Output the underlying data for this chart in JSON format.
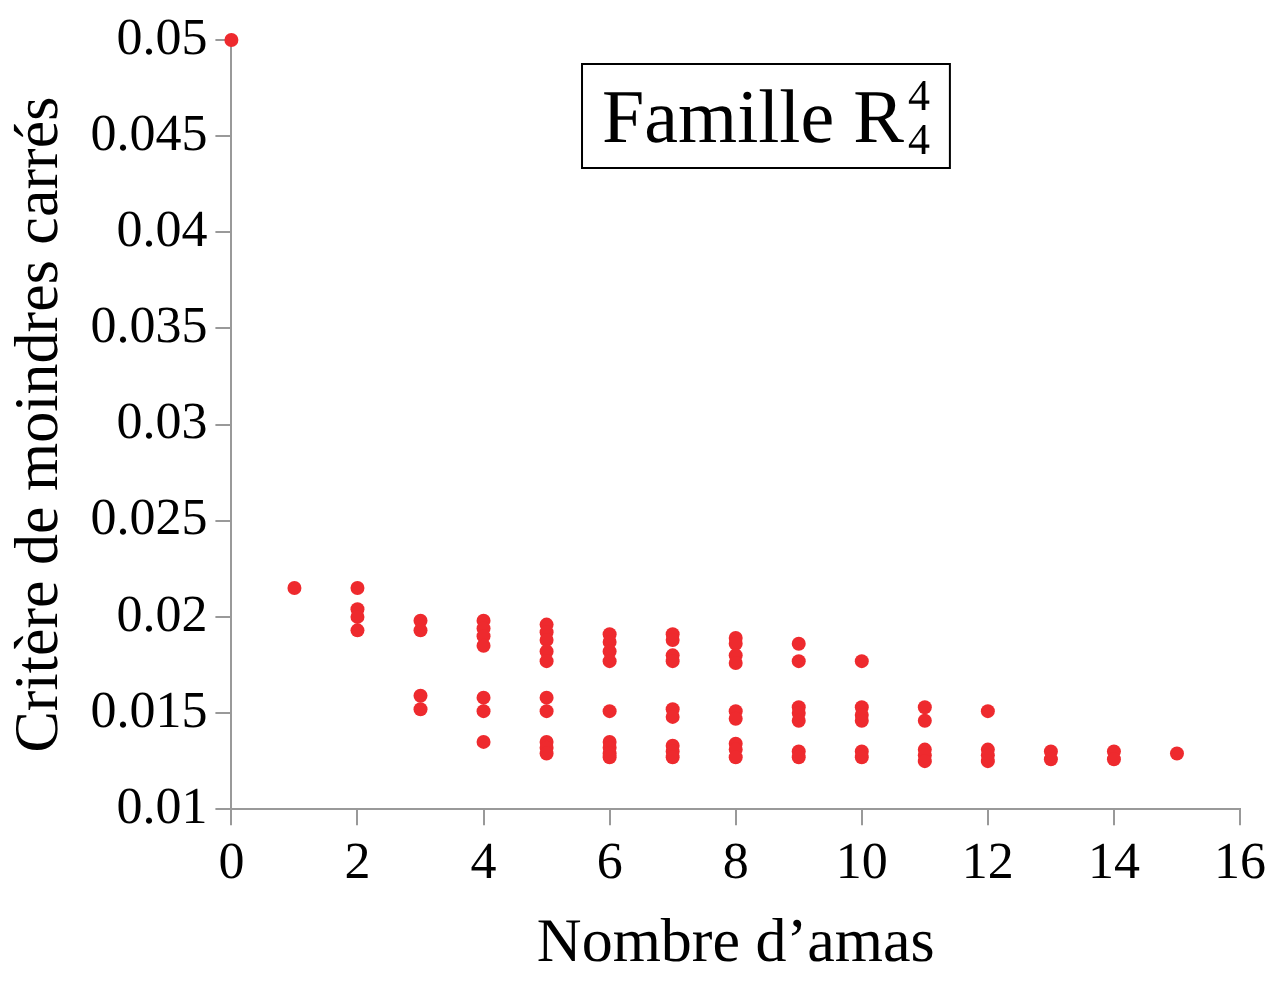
{
  "chart_data": {
    "type": "scatter",
    "title": "Famille R$^{4}$$_{4}$",
    "xlabel": "Nombre d’amas",
    "ylabel": "Critère de moindres carrés",
    "x": [
      0,
      1,
      2,
      2,
      2,
      2,
      3,
      3,
      3,
      3,
      4,
      4,
      4,
      4,
      4,
      4,
      4,
      5,
      5,
      5,
      5,
      5,
      5,
      5,
      5,
      5,
      5,
      6,
      6,
      6,
      6,
      6,
      6,
      6,
      6,
      6,
      7,
      7,
      7,
      7,
      7,
      7,
      7,
      7,
      7,
      8,
      8,
      8,
      8,
      8,
      8,
      8,
      8,
      8,
      9,
      9,
      9,
      9,
      9,
      9,
      9,
      10,
      10,
      10,
      10,
      10,
      10,
      11,
      11,
      11,
      11,
      11,
      12,
      12,
      12,
      12,
      13,
      13,
      14,
      14,
      15
    ],
    "series": [
      {
        "color": "#ee2a2e",
        "values": [
          0.05,
          0.0215,
          0.0215,
          0.0204,
          0.02,
          0.0193,
          0.0198,
          0.0193,
          0.0159,
          0.0152,
          0.0198,
          0.0194,
          0.019,
          0.0185,
          0.0158,
          0.0151,
          0.0135,
          0.0196,
          0.0192,
          0.0188,
          0.0182,
          0.0177,
          0.0158,
          0.0151,
          0.0135,
          0.0132,
          0.0129,
          0.0191,
          0.0187,
          0.0182,
          0.0177,
          0.0151,
          0.0135,
          0.0132,
          0.0129,
          0.0127,
          0.0191,
          0.0188,
          0.018,
          0.0177,
          0.0152,
          0.0148,
          0.0133,
          0.013,
          0.0127,
          0.0189,
          0.0186,
          0.018,
          0.0176,
          0.0151,
          0.0147,
          0.0134,
          0.0131,
          0.0127,
          0.0186,
          0.0177,
          0.0153,
          0.015,
          0.0146,
          0.013,
          0.0127,
          0.0177,
          0.0153,
          0.0149,
          0.0146,
          0.013,
          0.0127,
          0.0153,
          0.0146,
          0.0131,
          0.0128,
          0.0125,
          0.0151,
          0.0131,
          0.0128,
          0.0125,
          0.013,
          0.0126,
          0.013,
          0.0126,
          0.0129
        ]
      }
    ],
    "xlim": [
      0,
      16
    ],
    "xticks": [
      0,
      2,
      4,
      6,
      8,
      10,
      12,
      14,
      16
    ],
    "ylim": [
      0.01,
      0.05
    ],
    "yticks": [
      0.01,
      0.015,
      0.02,
      0.025,
      0.03,
      0.035,
      0.04,
      0.045,
      0.05
    ],
    "marker": "circle",
    "grid": false,
    "legend": false
  }
}
